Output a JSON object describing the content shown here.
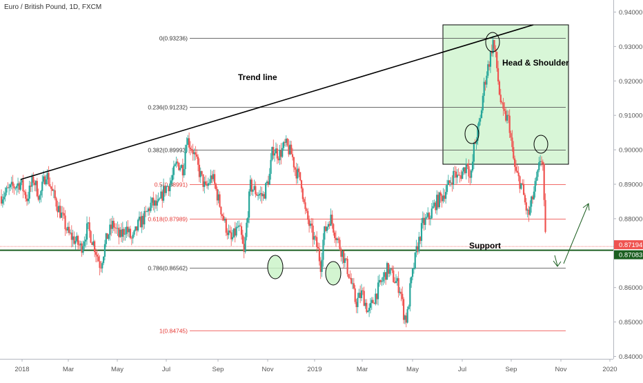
{
  "header": {
    "symbol_title": "Euro / British Pound, 1D, FXCM"
  },
  "chart_data": {
    "type": "candlestick",
    "title": "Euro / British Pound, 1D, FXCM",
    "x_ticks": [
      "2018",
      "Mar",
      "May",
      "Jul",
      "Sep",
      "Nov",
      "2019",
      "Mar",
      "May",
      "Jul",
      "Sep",
      "Nov",
      "2020"
    ],
    "y_ticks": [
      "0.94000",
      "0.93000",
      "0.92000",
      "0.91000",
      "0.90000",
      "0.89000",
      "0.88000",
      "0.87000",
      "0.86000",
      "0.85000",
      "0.84000"
    ],
    "y_tick_values": [
      0.94,
      0.93,
      0.92,
      0.91,
      0.9,
      0.89,
      0.88,
      0.87,
      0.86,
      0.85,
      0.84
    ],
    "ylim": [
      0.8393,
      0.9435
    ],
    "price_labels": [
      {
        "text": "0.87194",
        "value": 0.87194,
        "color": "#ef5350"
      },
      {
        "text": "0.87083",
        "value": 0.87083,
        "color": "#1b5e20"
      }
    ],
    "fib_levels": [
      {
        "label": "0(0.93236)",
        "value": 0.93236,
        "color": "#555555",
        "label_color": "#333333"
      },
      {
        "label": "0.236(0.91232)",
        "value": 0.91232,
        "color": "#555555",
        "label_color": "#333333"
      },
      {
        "label": "0.382(0.89993)",
        "value": 0.89993,
        "color": "#555555",
        "label_color": "#333333"
      },
      {
        "label": "0.5(0.88991)",
        "value": 0.88991,
        "color": "#ef5350",
        "label_color": "#e53935"
      },
      {
        "label": "0.618(0.87989)",
        "value": 0.87989,
        "color": "#ef5350",
        "label_color": "#e53935"
      },
      {
        "label": "0.786(0.86562)",
        "value": 0.86562,
        "color": "#555555",
        "label_color": "#333333"
      },
      {
        "label": "1(0.84745)",
        "value": 0.84745,
        "color": "#ef5350",
        "label_color": "#e53935"
      }
    ],
    "support_level": 0.87083,
    "annotations": {
      "trend_line": "Trend line",
      "head_shoulder": "Head & Shoulder",
      "support": "Support"
    },
    "price_path": [
      [
        0,
        0.8865
      ],
      [
        3,
        0.8888
      ],
      [
        6,
        0.8905
      ],
      [
        8,
        0.8858
      ],
      [
        10,
        0.8915
      ],
      [
        12,
        0.8862
      ],
      [
        14,
        0.8935
      ],
      [
        16,
        0.8875
      ],
      [
        19,
        0.8805
      ],
      [
        21,
        0.8755
      ],
      [
        23,
        0.8738
      ],
      [
        25,
        0.8715
      ],
      [
        27,
        0.8775
      ],
      [
        29,
        0.8725
      ],
      [
        31,
        0.8662
      ],
      [
        33,
        0.8745
      ],
      [
        35,
        0.8785
      ],
      [
        37,
        0.8745
      ],
      [
        39,
        0.8775
      ],
      [
        41,
        0.8735
      ],
      [
        43,
        0.8785
      ],
      [
        45,
        0.8805
      ],
      [
        47,
        0.8845
      ],
      [
        49,
        0.8835
      ],
      [
        51,
        0.8885
      ],
      [
        53,
        0.8905
      ],
      [
        55,
        0.8962
      ],
      [
        57,
        0.8945
      ],
      [
        58,
        0.9035
      ],
      [
        60,
        0.8998
      ],
      [
        62,
        0.8935
      ],
      [
        64,
        0.8885
      ],
      [
        66,
        0.8925
      ],
      [
        68,
        0.8855
      ],
      [
        70,
        0.8785
      ],
      [
        72,
        0.8735
      ],
      [
        74,
        0.8775
      ],
      [
        75,
        0.8755
      ],
      [
        76,
        0.8695
      ],
      [
        77,
        0.8805
      ],
      [
        78,
        0.8895
      ],
      [
        80,
        0.8875
      ],
      [
        82,
        0.8865
      ],
      [
        84,
        0.8925
      ],
      [
        85,
        0.9005
      ],
      [
        87,
        0.8985
      ],
      [
        89,
        0.9015
      ],
      [
        91,
        0.8985
      ],
      [
        92,
        0.8945
      ],
      [
        94,
        0.8905
      ],
      [
        95,
        0.8825
      ],
      [
        97,
        0.8765
      ],
      [
        99,
        0.8715
      ],
      [
        100,
        0.8665
      ],
      [
        101,
        0.8755
      ],
      [
        103,
        0.8805
      ],
      [
        105,
        0.8745
      ],
      [
        107,
        0.8695
      ],
      [
        109,
        0.8635
      ],
      [
        111,
        0.8555
      ],
      [
        113,
        0.8585
      ],
      [
        115,
        0.8525
      ],
      [
        117,
        0.8575
      ],
      [
        119,
        0.8615
      ],
      [
        121,
        0.8655
      ],
      [
        123,
        0.8625
      ],
      [
        125,
        0.8595
      ],
      [
        126,
        0.8525
      ],
      [
        127,
        0.8505
      ],
      [
        128,
        0.8595
      ],
      [
        130,
        0.8705
      ],
      [
        132,
        0.8785
      ],
      [
        134,
        0.8805
      ],
      [
        136,
        0.8845
      ],
      [
        138,
        0.8865
      ],
      [
        140,
        0.8895
      ],
      [
        142,
        0.8935
      ],
      [
        143,
        0.8915
      ],
      [
        145,
        0.8945
      ],
      [
        146,
        0.8965
      ],
      [
        147,
        0.8905
      ],
      [
        148,
        0.9005
      ],
      [
        150,
        0.9085
      ],
      [
        151,
        0.9175
      ],
      [
        152,
        0.9225
      ],
      [
        153,
        0.9265
      ],
      [
        154,
        0.9315
      ],
      [
        155,
        0.9255
      ],
      [
        156,
        0.9165
      ],
      [
        157,
        0.9105
      ],
      [
        159,
        0.9085
      ],
      [
        160,
        0.8995
      ],
      [
        161,
        0.8935
      ],
      [
        163,
        0.8895
      ],
      [
        164,
        0.8845
      ],
      [
        165,
        0.8805
      ],
      [
        166,
        0.8845
      ],
      [
        167,
        0.8885
      ],
      [
        168,
        0.8925
      ],
      [
        169,
        0.8985
      ],
      [
        169.6,
        0.8955
      ],
      [
        170,
        0.8835
      ],
      [
        170.5,
        0.8719
      ]
    ],
    "x_range": [
      0,
      190
    ]
  }
}
